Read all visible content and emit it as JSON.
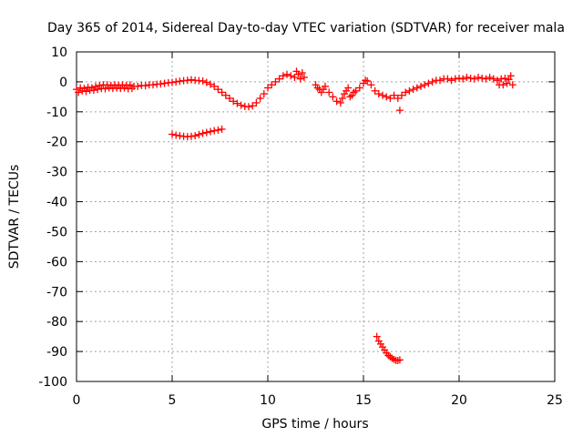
{
  "chart_data": {
    "type": "scatter",
    "title": "Day 365 of 2014, Sidereal Day-to-day VTEC variation (SDTVAR) for receiver mala",
    "xlabel": "GPS time / hours",
    "ylabel": "SDTVAR / TECUs",
    "xlim": [
      0,
      25
    ],
    "ylim": [
      -100,
      10
    ],
    "x_ticks": [
      0,
      5,
      10,
      15,
      20,
      25
    ],
    "y_ticks": [
      10,
      0,
      -10,
      -20,
      -30,
      -40,
      -50,
      -60,
      -70,
      -80,
      -90,
      -100
    ],
    "grid": true,
    "marker": "plus",
    "series": [
      {
        "name": "SDTVAR",
        "color": "#ff0000",
        "points": [
          [
            0.0,
            -2.5
          ],
          [
            0.1,
            -3.5
          ],
          [
            0.2,
            -2.0
          ],
          [
            0.3,
            -3.0
          ],
          [
            0.4,
            -2.2
          ],
          [
            0.5,
            -3.2
          ],
          [
            0.6,
            -1.8
          ],
          [
            0.7,
            -2.8
          ],
          [
            0.8,
            -2.0
          ],
          [
            0.9,
            -2.8
          ],
          [
            1.0,
            -1.5
          ],
          [
            1.1,
            -2.5
          ],
          [
            1.2,
            -1.2
          ],
          [
            1.3,
            -2.2
          ],
          [
            1.4,
            -1.0
          ],
          [
            1.5,
            -2.3
          ],
          [
            1.6,
            -1.0
          ],
          [
            1.7,
            -2.0
          ],
          [
            1.8,
            -1.2
          ],
          [
            1.9,
            -2.2
          ],
          [
            2.0,
            -1.0
          ],
          [
            2.1,
            -2.0
          ],
          [
            2.2,
            -1.2
          ],
          [
            2.3,
            -2.2
          ],
          [
            2.4,
            -1.0
          ],
          [
            2.5,
            -2.0
          ],
          [
            2.6,
            -1.2
          ],
          [
            2.7,
            -2.3
          ],
          [
            2.8,
            -1.0
          ],
          [
            2.9,
            -2.2
          ],
          [
            3.0,
            -1.5
          ],
          [
            3.2,
            -1.5
          ],
          [
            3.4,
            -1.2
          ],
          [
            3.6,
            -1.3
          ],
          [
            3.8,
            -1.0
          ],
          [
            4.0,
            -1.0
          ],
          [
            4.2,
            -0.8
          ],
          [
            4.4,
            -0.7
          ],
          [
            4.6,
            -0.5
          ],
          [
            4.8,
            -0.3
          ],
          [
            5.0,
            -0.2
          ],
          [
            5.2,
            0.0
          ],
          [
            5.4,
            0.2
          ],
          [
            5.6,
            0.4
          ],
          [
            5.8,
            0.5
          ],
          [
            6.0,
            0.7
          ],
          [
            6.2,
            0.5
          ],
          [
            6.4,
            0.4
          ],
          [
            6.6,
            0.3
          ],
          [
            6.8,
            -0.2
          ],
          [
            7.0,
            -0.8
          ],
          [
            7.2,
            -1.5
          ],
          [
            7.4,
            -2.5
          ],
          [
            7.6,
            -3.5
          ],
          [
            7.8,
            -4.5
          ],
          [
            8.0,
            -5.5
          ],
          [
            8.2,
            -6.5
          ],
          [
            8.4,
            -7.2
          ],
          [
            8.6,
            -7.8
          ],
          [
            8.8,
            -8.2
          ],
          [
            9.0,
            -8.3
          ],
          [
            9.2,
            -8.0
          ],
          [
            9.4,
            -7.0
          ],
          [
            9.6,
            -5.5
          ],
          [
            9.8,
            -4.0
          ],
          [
            10.0,
            -2.0
          ],
          [
            10.2,
            -1.0
          ],
          [
            10.4,
            0.0
          ],
          [
            10.6,
            1.0
          ],
          [
            10.8,
            2.0
          ],
          [
            11.0,
            2.5
          ],
          [
            11.2,
            2.0
          ],
          [
            11.4,
            1.5
          ],
          [
            11.5,
            3.5
          ],
          [
            11.6,
            2.5
          ],
          [
            11.7,
            1.0
          ],
          [
            11.8,
            3.0
          ],
          [
            11.9,
            1.5
          ],
          [
            12.5,
            -1.0
          ],
          [
            12.6,
            -2.0
          ],
          [
            12.7,
            -2.5
          ],
          [
            12.8,
            -3.5
          ],
          [
            12.9,
            -2.5
          ],
          [
            13.0,
            -1.5
          ],
          [
            13.2,
            -3.5
          ],
          [
            13.4,
            -5.0
          ],
          [
            13.6,
            -6.5
          ],
          [
            13.8,
            -7.0
          ],
          [
            13.9,
            -5.5
          ],
          [
            14.0,
            -4.0
          ],
          [
            14.1,
            -3.0
          ],
          [
            14.2,
            -2.0
          ],
          [
            14.3,
            -5.0
          ],
          [
            14.4,
            -4.5
          ],
          [
            14.5,
            -3.5
          ],
          [
            14.6,
            -3.0
          ],
          [
            14.8,
            -2.0
          ],
          [
            15.0,
            -0.5
          ],
          [
            15.1,
            0.5
          ],
          [
            15.2,
            0.3
          ],
          [
            15.4,
            -1.0
          ],
          [
            15.6,
            -3.0
          ],
          [
            15.8,
            -4.0
          ],
          [
            16.0,
            -4.5
          ],
          [
            16.2,
            -5.0
          ],
          [
            16.4,
            -5.5
          ],
          [
            16.6,
            -4.5
          ],
          [
            16.8,
            -5.5
          ],
          [
            16.9,
            -9.5
          ],
          [
            17.0,
            -4.5
          ],
          [
            17.2,
            -3.5
          ],
          [
            17.4,
            -3.0
          ],
          [
            17.6,
            -2.5
          ],
          [
            17.8,
            -2.0
          ],
          [
            18.0,
            -1.5
          ],
          [
            18.2,
            -1.0
          ],
          [
            18.4,
            -0.5
          ],
          [
            18.6,
            0.0
          ],
          [
            18.8,
            0.5
          ],
          [
            19.0,
            0.5
          ],
          [
            19.2,
            1.0
          ],
          [
            19.4,
            1.0
          ],
          [
            19.6,
            0.5
          ],
          [
            19.8,
            1.0
          ],
          [
            20.0,
            1.2
          ],
          [
            20.2,
            1.0
          ],
          [
            20.4,
            1.5
          ],
          [
            20.6,
            1.2
          ],
          [
            20.8,
            1.0
          ],
          [
            21.0,
            1.5
          ],
          [
            21.2,
            1.2
          ],
          [
            21.4,
            1.0
          ],
          [
            21.6,
            1.5
          ],
          [
            21.8,
            1.0
          ],
          [
            22.0,
            0.5
          ],
          [
            22.1,
            -1.0
          ],
          [
            22.2,
            1.0
          ],
          [
            22.3,
            -1.0
          ],
          [
            22.4,
            1.2
          ],
          [
            22.5,
            -0.5
          ],
          [
            22.6,
            0.8
          ],
          [
            22.7,
            2.0
          ],
          [
            22.8,
            -1.0
          ],
          [
            5.0,
            -17.5
          ],
          [
            5.2,
            -17.8
          ],
          [
            5.4,
            -18.0
          ],
          [
            5.6,
            -18.2
          ],
          [
            5.8,
            -18.3
          ],
          [
            6.0,
            -18.2
          ],
          [
            6.2,
            -18.0
          ],
          [
            6.4,
            -17.6
          ],
          [
            6.6,
            -17.2
          ],
          [
            6.8,
            -16.9
          ],
          [
            7.0,
            -16.6
          ],
          [
            7.2,
            -16.3
          ],
          [
            7.4,
            -16.1
          ],
          [
            7.6,
            -15.8
          ],
          [
            15.7,
            -85.0
          ],
          [
            15.8,
            -86.5
          ],
          [
            15.9,
            -87.5
          ],
          [
            16.0,
            -88.5
          ],
          [
            16.1,
            -89.5
          ],
          [
            16.2,
            -90.5
          ],
          [
            16.3,
            -91.3
          ],
          [
            16.4,
            -91.8
          ],
          [
            16.5,
            -92.3
          ],
          [
            16.6,
            -92.7
          ],
          [
            16.7,
            -93.0
          ],
          [
            16.8,
            -93.0
          ],
          [
            16.9,
            -92.8
          ]
        ]
      }
    ]
  }
}
